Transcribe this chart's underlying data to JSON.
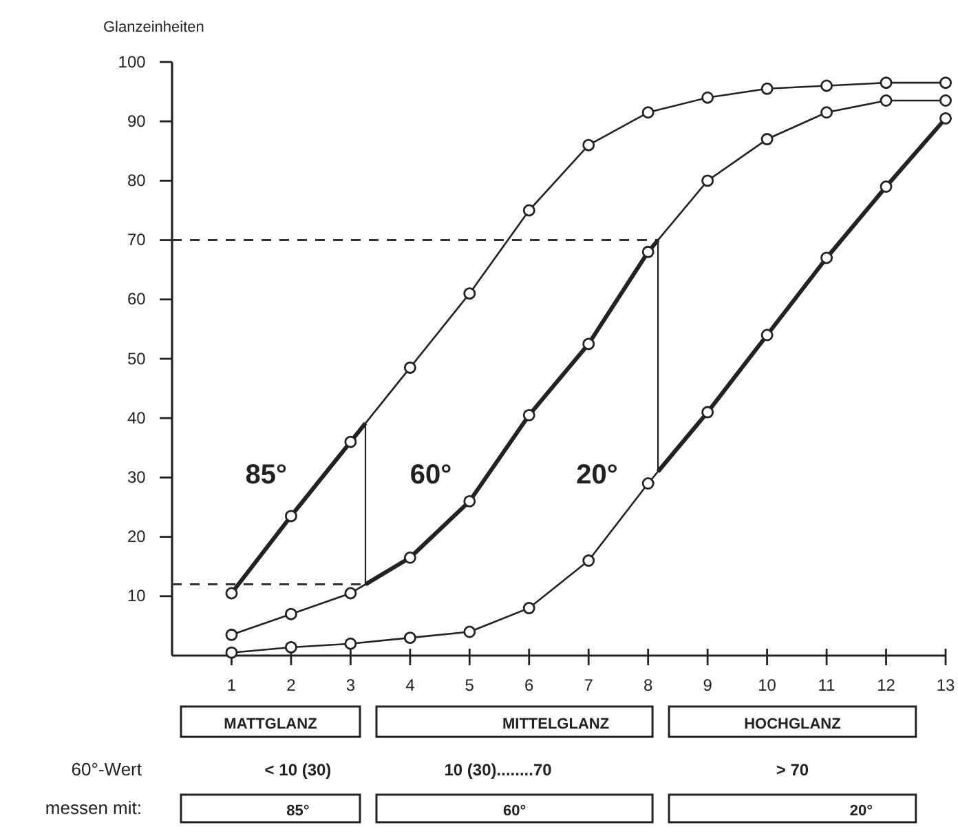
{
  "chart_data": {
    "type": "line",
    "ylabel": "Glanzeinheiten",
    "x": [
      1,
      2,
      3,
      4,
      5,
      6,
      7,
      8,
      9,
      10,
      11,
      12,
      13
    ],
    "xlim": [
      0,
      13
    ],
    "xticks": [
      1,
      2,
      3,
      4,
      5,
      6,
      7,
      8,
      9,
      10,
      11,
      12,
      13
    ],
    "ylim": [
      0,
      100
    ],
    "yticks": [
      10,
      20,
      30,
      40,
      50,
      60,
      70,
      80,
      90,
      100
    ],
    "marker": "circle",
    "grid": false,
    "series": [
      {
        "name": "85°",
        "color": "#222222",
        "values": [
          10.5,
          23.5,
          36,
          48.5,
          61,
          75,
          86,
          91.5,
          94,
          95.5,
          96,
          96.5,
          96.5
        ]
      },
      {
        "name": "60°",
        "color": "#222222",
        "values": [
          3.5,
          7,
          10.5,
          16.5,
          26,
          40.5,
          52.5,
          68,
          80,
          87,
          91.5,
          93.5,
          93.5
        ]
      },
      {
        "name": "20°",
        "color": "#222222",
        "values": [
          0.5,
          1.4,
          2,
          3,
          4,
          8,
          16,
          29,
          41,
          54,
          67,
          79,
          90.5
        ]
      }
    ],
    "ref_lines": [
      {
        "axis": "y",
        "value": 12,
        "line_style": "dashed"
      },
      {
        "axis": "y",
        "value": 70,
        "line_style": "dashed"
      }
    ],
    "annotations": [
      "MATTGLANZ",
      "MITTELGLANZ",
      "HOCHGLANZ",
      "60°-Wert",
      "< 10 (30)",
      "10 (30)........70",
      "> 70",
      "messen mit:",
      "85°",
      "60°",
      "20°"
    ]
  }
}
